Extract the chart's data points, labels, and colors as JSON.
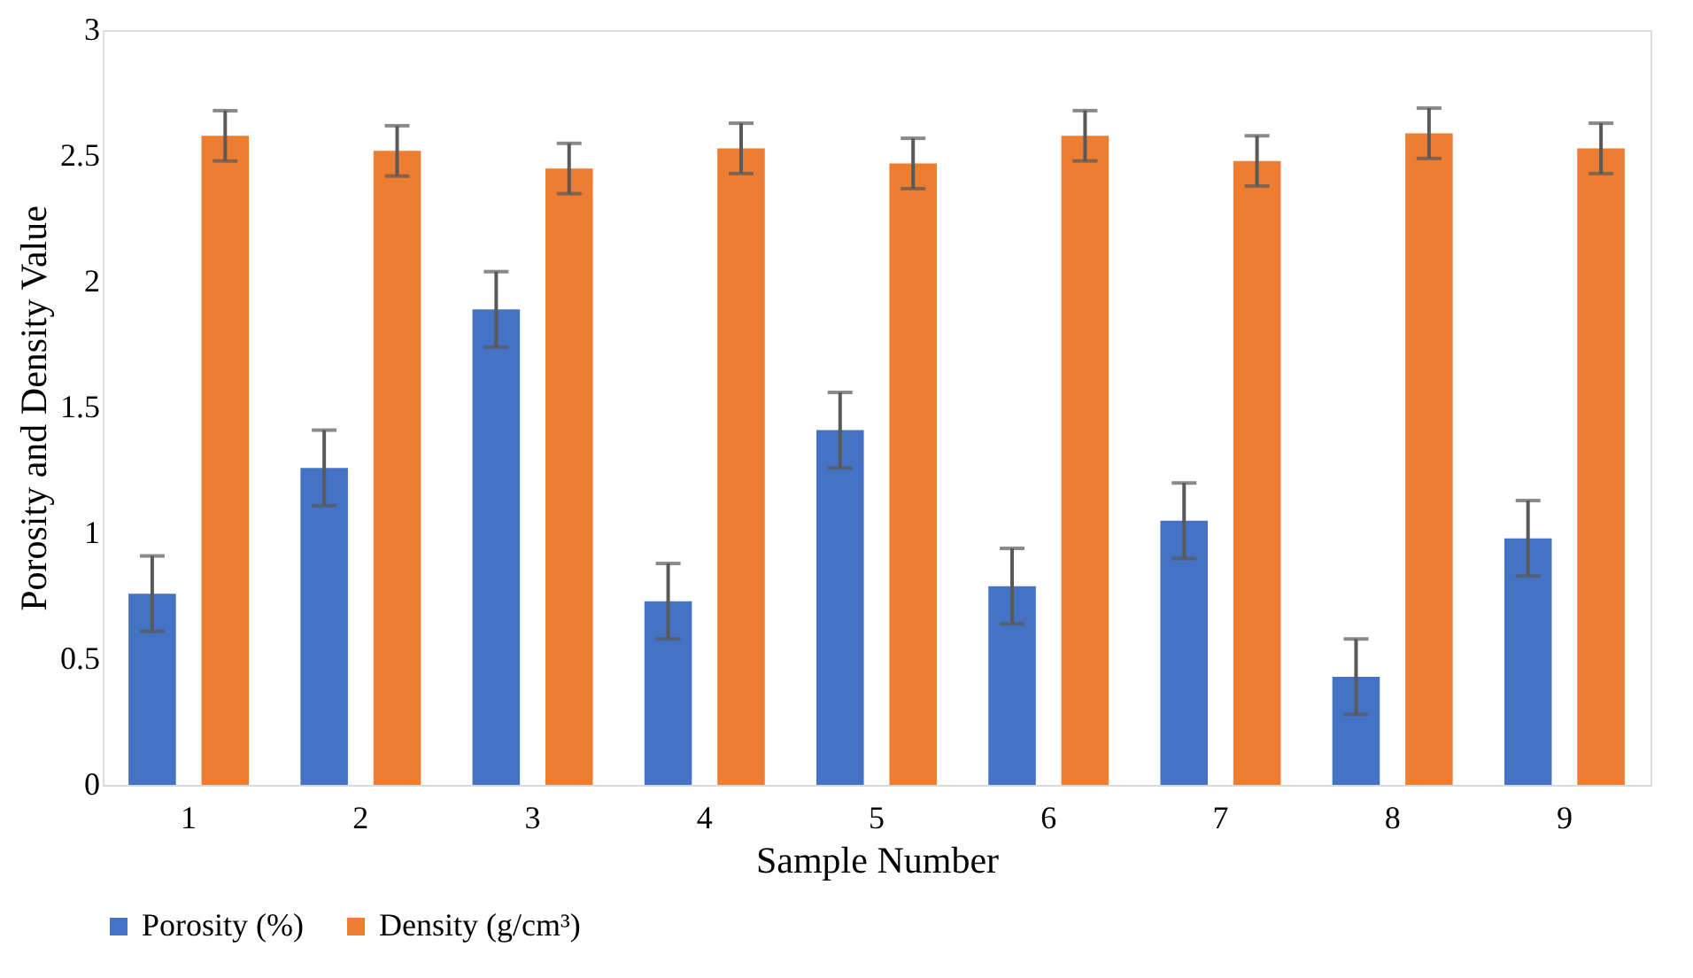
{
  "chart_data": {
    "type": "bar",
    "xlabel": "Sample Number",
    "ylabel": "Porosity and Density Value",
    "categories": [
      "1",
      "2",
      "3",
      "4",
      "5",
      "6",
      "7",
      "8",
      "9"
    ],
    "series": [
      {
        "name": "Porosity (%)",
        "color": "#4472c4",
        "values": [
          0.76,
          1.26,
          1.89,
          0.73,
          1.41,
          0.79,
          1.05,
          0.43,
          0.98
        ],
        "errors": [
          0.15,
          0.15,
          0.15,
          0.15,
          0.15,
          0.15,
          0.15,
          0.15,
          0.15
        ]
      },
      {
        "name": "Density (g/cm³)",
        "color": "#ed7d31",
        "values": [
          2.58,
          2.52,
          2.45,
          2.53,
          2.47,
          2.58,
          2.48,
          2.59,
          2.53
        ],
        "errors": [
          0.1,
          0.1,
          0.1,
          0.1,
          0.1,
          0.1,
          0.1,
          0.1,
          0.1
        ]
      }
    ],
    "ylim": [
      0,
      3
    ],
    "yticks": [
      0,
      0.5,
      1,
      1.5,
      2,
      2.5,
      3
    ],
    "grid": false,
    "legend": "bottom"
  }
}
